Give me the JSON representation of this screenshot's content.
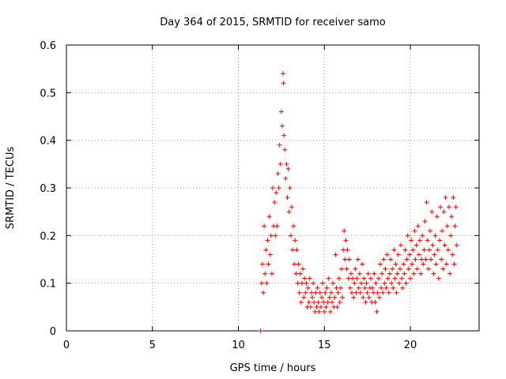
{
  "chart_data": {
    "type": "scatter",
    "title": "Day 364 of 2015, SRMTID for receiver samo",
    "xlabel": "GPS time / hours",
    "ylabel": "SRMTID / TECUs",
    "xlim": [
      0,
      24
    ],
    "ylim": [
      0,
      0.6
    ],
    "xticks": [
      0,
      5,
      10,
      15,
      20
    ],
    "xtick_labels": [
      "0",
      "5",
      "10",
      "15",
      "20"
    ],
    "yticks": [
      0,
      0.1,
      0.2,
      0.3,
      0.4,
      0.5,
      0.6
    ],
    "ytick_labels": [
      "0",
      "0.1",
      "0.2",
      "0.3",
      "0.4",
      "0.5",
      "0.6"
    ],
    "grid": true,
    "marker": "+",
    "color": "#ff0000",
    "series": [
      {
        "name": "SRMTID",
        "x": [
          11.35,
          11.4,
          11.45,
          11.5,
          11.55,
          11.6,
          11.65,
          11.7,
          11.75,
          11.8,
          11.85,
          11.9,
          11.95,
          12.0,
          12.05,
          12.1,
          12.15,
          12.2,
          12.25,
          12.3,
          12.35,
          12.4,
          12.45,
          12.5,
          12.55,
          12.6,
          12.62,
          12.65,
          12.7,
          12.75,
          12.8,
          12.85,
          12.9,
          12.95,
          13.0,
          13.05,
          13.1,
          13.15,
          13.2,
          13.25,
          13.3,
          13.35,
          13.4,
          13.45,
          13.5,
          13.55,
          13.6,
          13.65,
          13.7,
          13.75,
          13.8,
          13.85,
          13.9,
          13.95,
          14.0,
          14.05,
          14.1,
          14.15,
          14.2,
          14.25,
          14.3,
          14.35,
          14.4,
          14.45,
          14.5,
          14.55,
          14.6,
          14.65,
          14.7,
          14.75,
          14.8,
          14.85,
          14.9,
          14.95,
          15.0,
          15.05,
          15.1,
          15.15,
          15.2,
          15.25,
          15.3,
          15.35,
          15.4,
          15.45,
          15.5,
          15.55,
          15.6,
          15.65,
          15.7,
          15.75,
          15.8,
          15.85,
          15.9,
          15.95,
          16.0,
          16.05,
          16.1,
          16.15,
          16.2,
          16.25,
          16.3,
          16.35,
          16.4,
          16.45,
          16.5,
          16.55,
          16.6,
          16.65,
          16.7,
          16.75,
          16.8,
          16.85,
          16.9,
          16.95,
          17.0,
          17.05,
          17.1,
          17.15,
          17.2,
          17.25,
          17.3,
          17.35,
          17.4,
          17.45,
          17.5,
          17.55,
          17.6,
          17.65,
          17.7,
          17.75,
          17.8,
          17.85,
          17.9,
          17.95,
          18.0,
          18.05,
          18.1,
          18.15,
          18.2,
          18.25,
          18.3,
          18.35,
          18.4,
          18.45,
          18.5,
          18.55,
          18.6,
          18.65,
          18.7,
          18.75,
          18.8,
          18.85,
          18.9,
          18.95,
          19.0,
          19.05,
          19.1,
          19.15,
          19.2,
          19.25,
          19.3,
          19.35,
          19.4,
          19.45,
          19.5,
          19.55,
          19.6,
          19.65,
          19.7,
          19.75,
          19.8,
          19.85,
          19.9,
          19.95,
          20.0,
          20.05,
          20.1,
          20.15,
          20.2,
          20.25,
          20.3,
          20.35,
          20.4,
          20.45,
          20.5,
          20.55,
          20.6,
          20.65,
          20.7,
          20.75,
          20.8,
          20.85,
          20.9,
          20.95,
          21.0,
          21.05,
          21.1,
          21.15,
          21.2,
          21.25,
          21.3,
          21.35,
          21.4,
          21.45,
          21.5,
          21.55,
          21.6,
          21.65,
          21.7,
          21.75,
          21.8,
          21.85,
          21.9,
          21.95,
          22.0,
          22.05,
          22.1,
          22.15,
          22.2,
          22.25,
          22.3,
          22.35,
          22.4,
          22.45,
          22.5,
          22.55,
          22.6,
          22.65,
          22.7
        ],
        "y": [
          0.1,
          0.14,
          0.08,
          0.22,
          0.12,
          0.17,
          0.1,
          0.19,
          0.14,
          0.24,
          0.16,
          0.2,
          0.12,
          0.3,
          0.22,
          0.27,
          0.2,
          0.29,
          0.22,
          0.33,
          0.3,
          0.39,
          0.35,
          0.46,
          0.43,
          0.54,
          0.52,
          0.41,
          0.38,
          0.32,
          0.35,
          0.28,
          0.34,
          0.25,
          0.3,
          0.2,
          0.26,
          0.17,
          0.22,
          0.14,
          0.19,
          0.12,
          0.17,
          0.1,
          0.14,
          0.08,
          0.12,
          0.06,
          0.1,
          0.13,
          0.07,
          0.11,
          0.08,
          0.1,
          0.05,
          0.09,
          0.06,
          0.11,
          0.05,
          0.08,
          0.07,
          0.1,
          0.06,
          0.04,
          0.08,
          0.05,
          0.09,
          0.06,
          0.04,
          0.08,
          0.05,
          0.07,
          0.1,
          0.06,
          0.04,
          0.08,
          0.05,
          0.09,
          0.06,
          0.11,
          0.07,
          0.04,
          0.08,
          0.06,
          0.1,
          0.05,
          0.07,
          0.16,
          0.09,
          0.05,
          0.08,
          0.11,
          0.06,
          0.09,
          0.13,
          0.07,
          0.17,
          0.21,
          0.15,
          0.19,
          0.13,
          0.17,
          0.11,
          0.15,
          0.09,
          0.12,
          0.08,
          0.11,
          0.07,
          0.1,
          0.13,
          0.08,
          0.11,
          0.15,
          0.09,
          0.12,
          0.08,
          0.1,
          0.14,
          0.07,
          0.11,
          0.09,
          0.06,
          0.1,
          0.08,
          0.12,
          0.07,
          0.09,
          0.11,
          0.06,
          0.09,
          0.08,
          0.12,
          0.06,
          0.1,
          0.04,
          0.08,
          0.11,
          0.07,
          0.14,
          0.09,
          0.12,
          0.08,
          0.15,
          0.1,
          0.13,
          0.09,
          0.16,
          0.11,
          0.08,
          0.12,
          0.15,
          0.1,
          0.13,
          0.09,
          0.17,
          0.11,
          0.14,
          0.08,
          0.12,
          0.16,
          0.1,
          0.13,
          0.18,
          0.11,
          0.09,
          0.14,
          0.12,
          0.17,
          0.1,
          0.15,
          0.2,
          0.13,
          0.16,
          0.11,
          0.19,
          0.14,
          0.17,
          0.12,
          0.21,
          0.15,
          0.18,
          0.13,
          0.22,
          0.16,
          0.19,
          0.12,
          0.15,
          0.2,
          0.14,
          0.17,
          0.23,
          0.15,
          0.27,
          0.19,
          0.13,
          0.17,
          0.21,
          0.15,
          0.25,
          0.18,
          0.12,
          0.16,
          0.2,
          0.14,
          0.24,
          0.17,
          0.11,
          0.19,
          0.26,
          0.15,
          0.21,
          0.13,
          0.25,
          0.18,
          0.28,
          0.14,
          0.22,
          0.17,
          0.26,
          0.12,
          0.2,
          0.24,
          0.16,
          0.28,
          0.14,
          0.22,
          0.26,
          0.18
        ]
      }
    ],
    "outlier_points": [
      {
        "x": 11.3,
        "y": 0.0
      }
    ]
  }
}
